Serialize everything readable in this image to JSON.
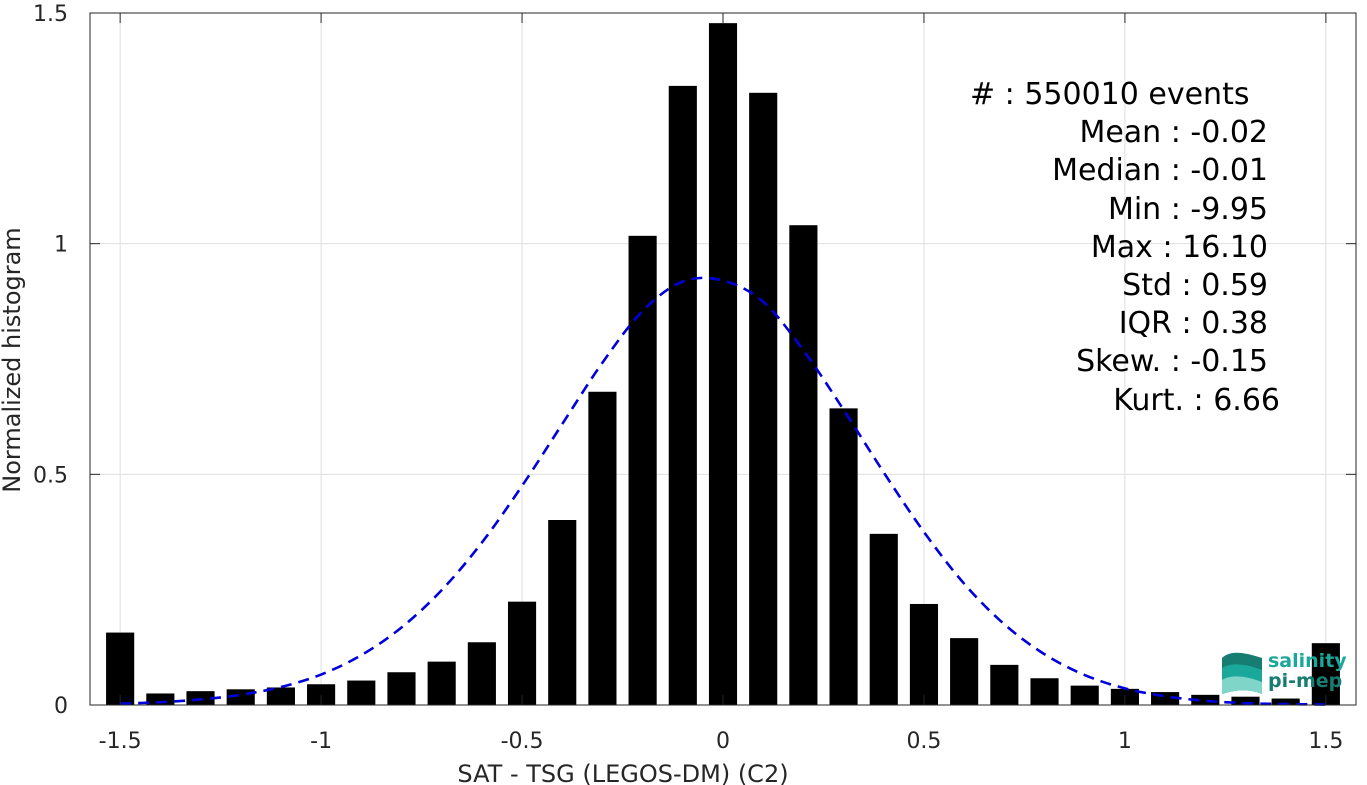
{
  "chart_data": {
    "type": "bar",
    "xlabel": "SAT - TSG (LEGOS-DM) (C2)",
    "ylabel": "Normalized histogram",
    "xlim": [
      -1.575,
      1.575
    ],
    "ylim": [
      0,
      1.5
    ],
    "xticks": [
      -1.5,
      -1,
      -0.5,
      0,
      0.5,
      1,
      1.5
    ],
    "xtick_labels": [
      "-1.5",
      "-1",
      "-0.5",
      "0",
      "0.5",
      "1",
      "1.5"
    ],
    "yticks": [
      0,
      0.5,
      1,
      1.5
    ],
    "ytick_labels": [
      "0",
      "0.5",
      "1",
      "1.5"
    ],
    "grid": true,
    "bar_color": "#000000",
    "bar_width": 0.07,
    "series": [
      {
        "type": "bar",
        "x": [
          -1.5,
          -1.4,
          -1.3,
          -1.2,
          -1.1,
          -1.0,
          -0.9,
          -0.8,
          -0.7,
          -0.6,
          -0.5,
          -0.4,
          -0.3,
          -0.2,
          -0.1,
          0.0,
          0.1,
          0.2,
          0.3,
          0.4,
          0.5,
          0.6,
          0.7,
          0.8,
          0.9,
          1.0,
          1.1,
          1.2,
          1.3,
          1.4,
          1.5
        ],
        "values": [
          0.157,
          0.025,
          0.03,
          0.034,
          0.038,
          0.045,
          0.053,
          0.071,
          0.094,
          0.136,
          0.224,
          0.401,
          0.679,
          1.017,
          1.342,
          1.478,
          1.327,
          1.04,
          0.643,
          0.371,
          0.219,
          0.145,
          0.087,
          0.058,
          0.042,
          0.035,
          0.028,
          0.022,
          0.018,
          0.014,
          0.134
        ]
      },
      {
        "type": "line",
        "style": "dashed",
        "color": "#0000dd",
        "x": [
          -1.5,
          -1.4,
          -1.3,
          -1.2,
          -1.1,
          -1.0,
          -0.9,
          -0.8,
          -0.7,
          -0.6,
          -0.5,
          -0.4,
          -0.3,
          -0.2,
          -0.1,
          0.0,
          0.1,
          0.2,
          0.3,
          0.4,
          0.5,
          0.6,
          0.7,
          0.8,
          0.9,
          1.0,
          1.1,
          1.2,
          1.3,
          1.4,
          1.5
        ],
        "values": [
          0.003,
          0.006,
          0.012,
          0.022,
          0.039,
          0.066,
          0.108,
          0.168,
          0.249,
          0.352,
          0.475,
          0.609,
          0.742,
          0.854,
          0.918,
          0.92,
          0.874,
          0.769,
          0.64,
          0.504,
          0.375,
          0.263,
          0.175,
          0.11,
          0.065,
          0.036,
          0.019,
          0.009,
          0.004,
          0.002,
          0.001
        ]
      }
    ],
    "annotations": [
      {
        "label": "#",
        "sep": " : ",
        "value": "550010 events"
      },
      {
        "label": "Mean",
        "sep": " : ",
        "value": "-0.02"
      },
      {
        "label": "Median",
        "sep": " : ",
        "value": "-0.01"
      },
      {
        "label": "Min",
        "sep": " : ",
        "value": "-9.95"
      },
      {
        "label": "Max",
        "sep": " : ",
        "value": "16.10"
      },
      {
        "label": "Std",
        "sep": " : ",
        "value": "0.59"
      },
      {
        "label": "IQR",
        "sep": " : ",
        "value": "0.38"
      },
      {
        "label": "Skew.",
        "sep": " : ",
        "value": "-0.15"
      },
      {
        "label": "Kurt.",
        "sep": " : ",
        "value": "6.66"
      }
    ]
  },
  "logo": {
    "line1": "salinity",
    "line2": "pi-mep",
    "colors": [
      "#1aa89a",
      "#177d72",
      "#7fd6c8"
    ]
  }
}
